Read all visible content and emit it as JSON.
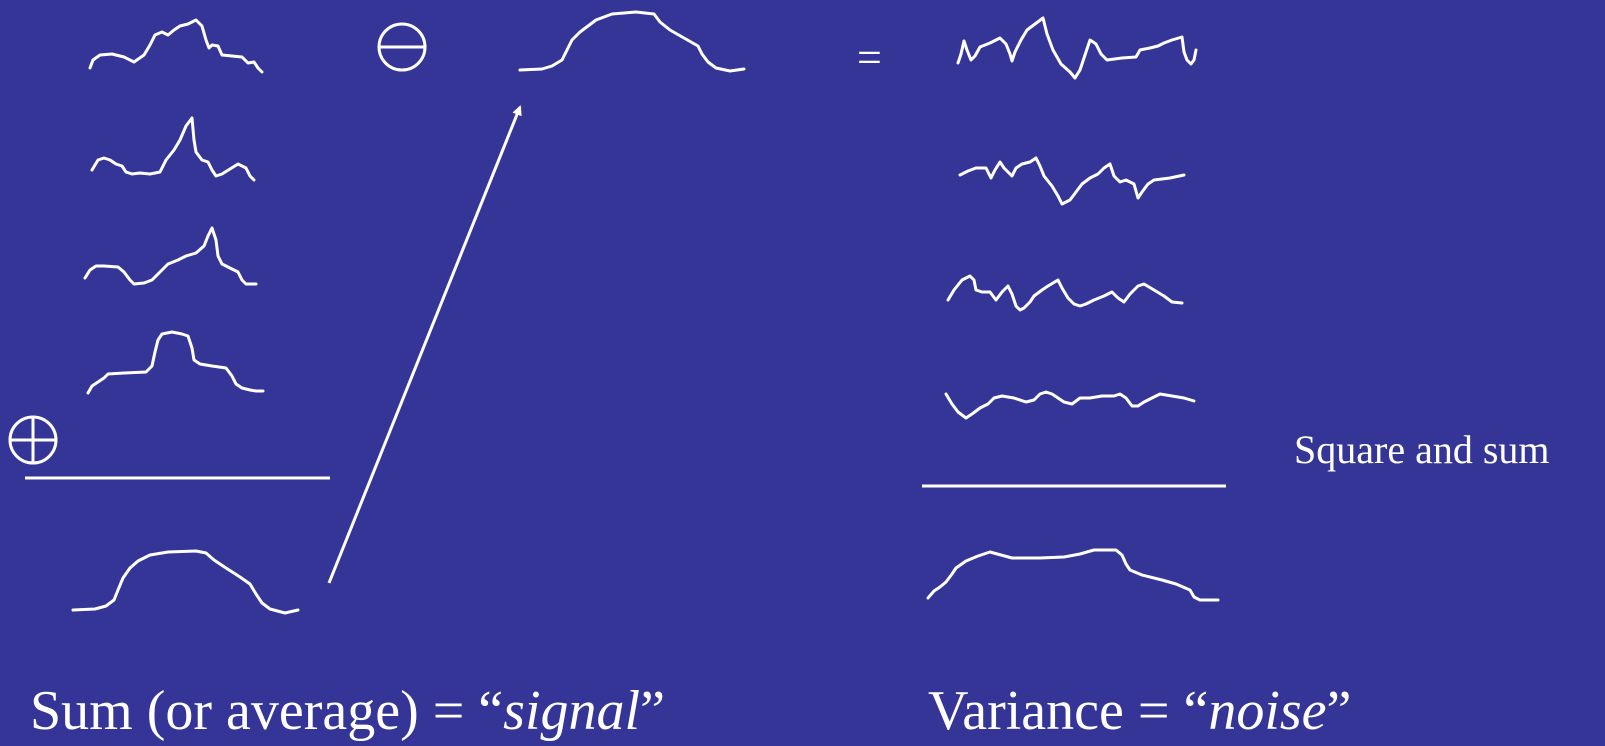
{
  "equals_sign": "=",
  "side_note": "Square and sum",
  "caption_signal": {
    "prefix": "Sum (or average) = “",
    "italic": "signal",
    "suffix": "”"
  },
  "caption_noise": {
    "prefix": "Variance = “",
    "italic": "noise",
    "suffix": "”"
  },
  "symbols": {
    "subtract": "circled-minus-icon",
    "add": "circled-plus-icon"
  }
}
